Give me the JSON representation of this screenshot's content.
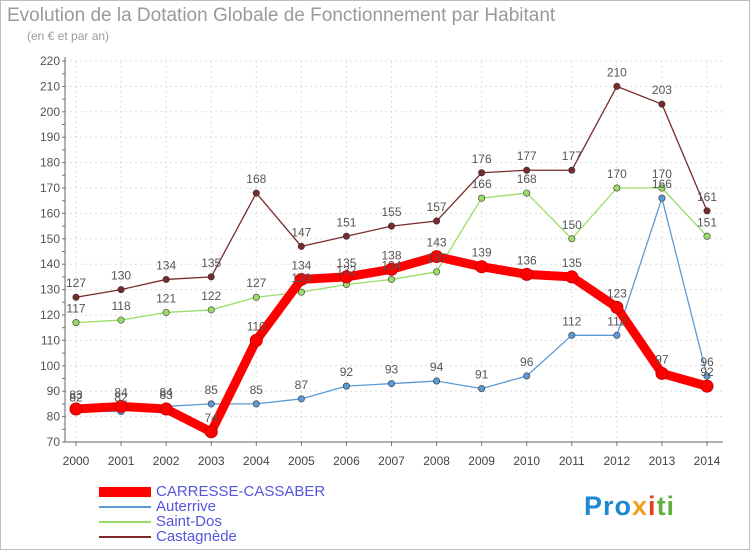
{
  "chart_data": {
    "type": "line",
    "title": "Evolution de la Dotation Globale de Fonctionnement par Habitant",
    "subtitle": "(en € et par an)",
    "x": [
      "2000",
      "2001",
      "2002",
      "2003",
      "2004",
      "2005",
      "2006",
      "2007",
      "2008",
      "2009",
      "2010",
      "2011",
      "2012",
      "2013",
      "2014"
    ],
    "ylim": [
      70,
      220
    ],
    "yticks": [
      70,
      80,
      90,
      100,
      110,
      120,
      130,
      140,
      150,
      160,
      170,
      180,
      190,
      200,
      210,
      220
    ],
    "grid": true,
    "series": [
      {
        "name": "CARRESSE-CASSABER",
        "color": "#ff0000",
        "values": [
          83,
          84,
          83,
          74,
          110,
          134,
          135,
          138,
          143,
          139,
          136,
          135,
          123,
          97,
          92
        ]
      },
      {
        "name": "Auterrive",
        "color": "#5b9bd5",
        "values": [
          82,
          82,
          84,
          85,
          85,
          87,
          92,
          93,
          94,
          91,
          96,
          112,
          112,
          166,
          96
        ]
      },
      {
        "name": "Saint-Dos",
        "color": "#99dd66",
        "values": [
          117,
          118,
          121,
          122,
          127,
          129,
          132,
          134,
          137,
          166,
          168,
          150,
          170,
          170,
          151
        ]
      },
      {
        "name": "Castagnède",
        "color": "#7a2a2a",
        "values": [
          127,
          130,
          134,
          135,
          168,
          147,
          151,
          155,
          157,
          176,
          177,
          177,
          210,
          203,
          161
        ]
      }
    ]
  },
  "brand": {
    "p1": "Pro",
    "p2": "x",
    "p3": "i",
    "p4": "ti"
  }
}
